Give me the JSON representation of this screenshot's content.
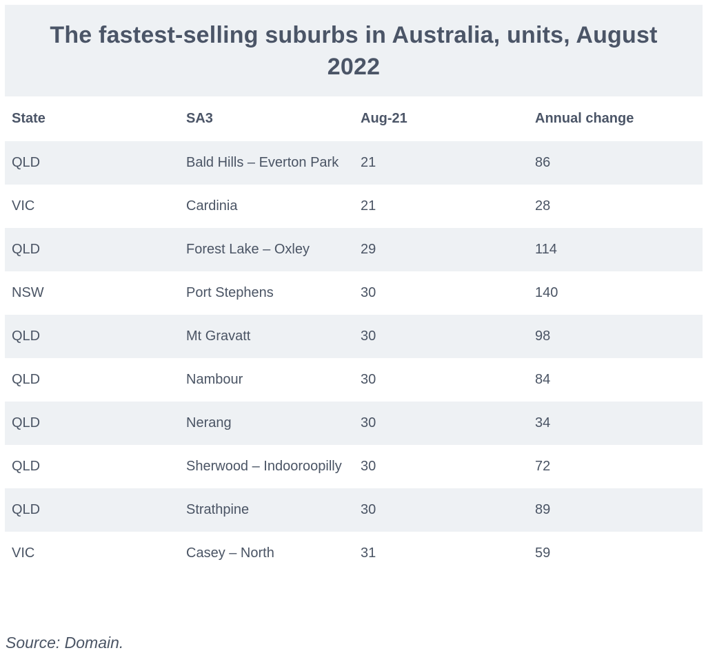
{
  "title": "The fastest-selling suburbs in Australia, units, August 2022",
  "columns": [
    "State",
    "SA3",
    "Aug-21",
    "Annual change"
  ],
  "rows": [
    {
      "state": "QLD",
      "sa3": "Bald Hills – Everton Park",
      "aug21": "21",
      "change": "86"
    },
    {
      "state": "VIC",
      "sa3": "Cardinia",
      "aug21": "21",
      "change": "28"
    },
    {
      "state": "QLD",
      "sa3": "Forest Lake – Oxley",
      "aug21": "29",
      "change": "114"
    },
    {
      "state": "NSW",
      "sa3": "Port Stephens",
      "aug21": "30",
      "change": "140"
    },
    {
      "state": "QLD",
      "sa3": "Mt Gravatt",
      "aug21": "30",
      "change": "98"
    },
    {
      "state": "QLD",
      "sa3": "Nambour",
      "aug21": "30",
      "change": "84"
    },
    {
      "state": "QLD",
      "sa3": "Nerang",
      "aug21": "30",
      "change": "34"
    },
    {
      "state": "QLD",
      "sa3": "Sherwood – Indooroopilly",
      "aug21": "30",
      "change": "72"
    },
    {
      "state": "QLD",
      "sa3": "Strathpine",
      "aug21": "30",
      "change": "89"
    },
    {
      "state": "VIC",
      "sa3": "Casey – North",
      "aug21": "31",
      "change": "59"
    }
  ],
  "source": "Source: Domain.",
  "colors": {
    "band": "#eef1f4",
    "text": "#4a5464"
  }
}
